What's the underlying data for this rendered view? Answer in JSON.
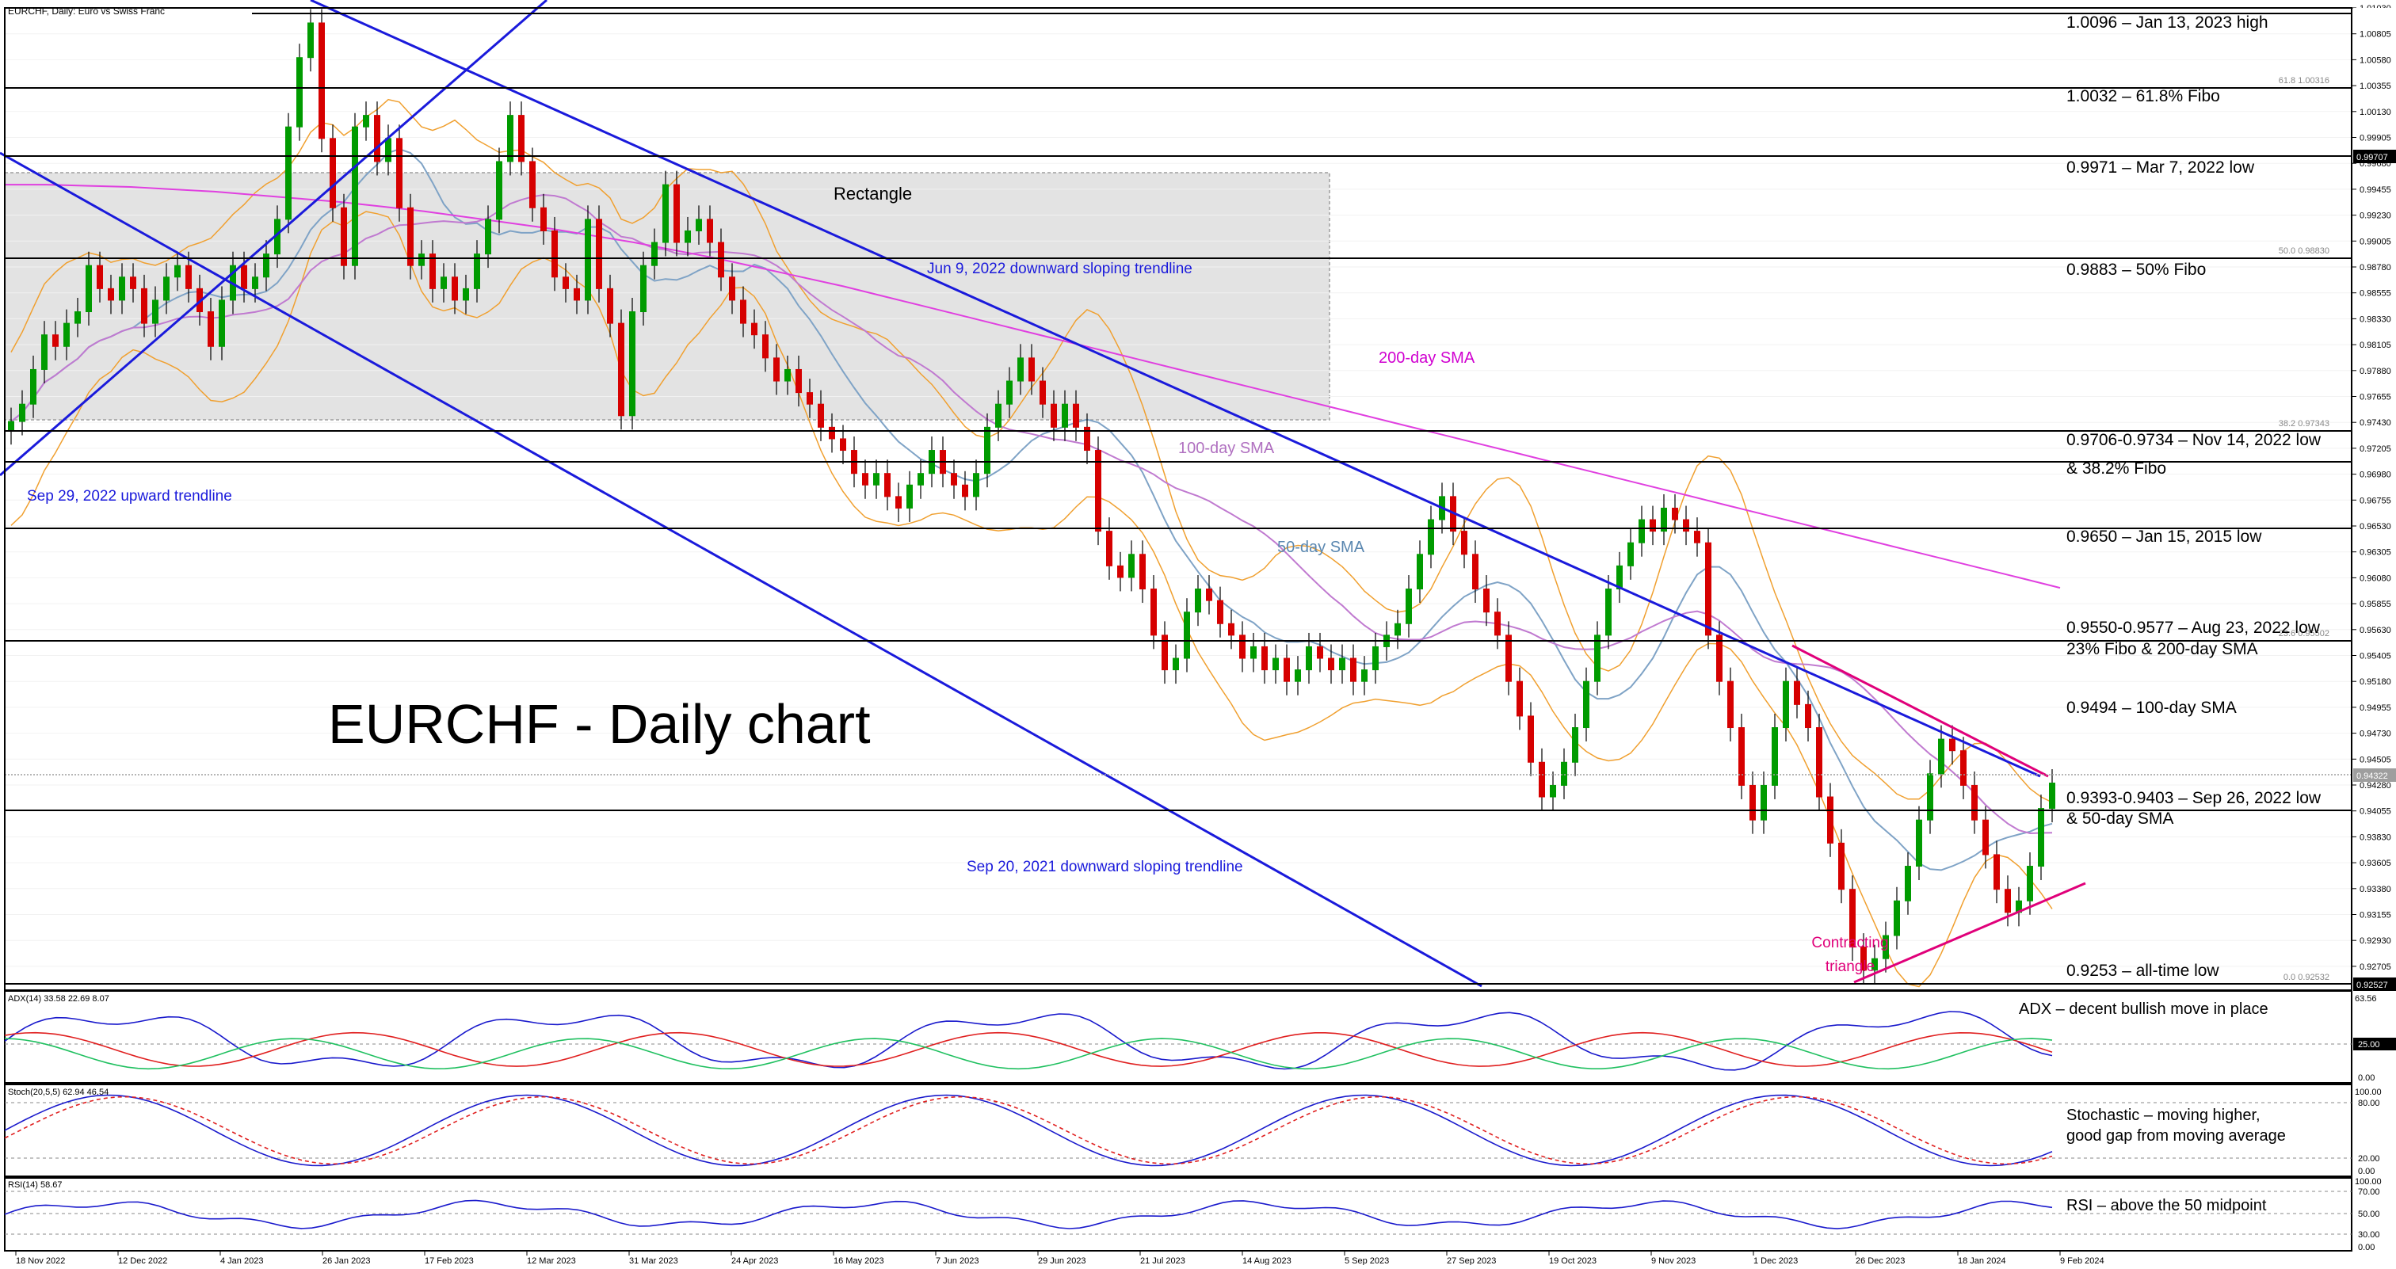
{
  "header": {
    "symbol_line": "EURCHF, Daily:  Euro vs Swiss Franc"
  },
  "chart_data": {
    "type": "candlestick",
    "title": "EURCHF - Daily chart",
    "y_range": [
      0.92527,
      1.0103
    ],
    "y_ticks": [
      "1.01030",
      "1.00805",
      "1.00580",
      "1.00355",
      "1.00130",
      "0.99905",
      "0.99680",
      "0.99455",
      "0.99230",
      "0.99005",
      "0.98780",
      "0.98555",
      "0.98330",
      "0.98105",
      "0.97880",
      "0.97655",
      "0.97430",
      "0.97205",
      "0.96980",
      "0.96755",
      "0.96530",
      "0.96305",
      "0.96080",
      "0.95855",
      "0.95630",
      "0.95405",
      "0.95180",
      "0.94955",
      "0.94730",
      "0.94505",
      "0.94280",
      "0.94055",
      "0.93830",
      "0.93605",
      "0.93380",
      "0.93155",
      "0.92930",
      "0.92705"
    ],
    "x_ticks": [
      "18 Nov 2022",
      "12 Dec 2022",
      "4 Jan 2023",
      "26 Jan 2023",
      "17 Feb 2023",
      "12 Mar 2023",
      "31 Mar 2023",
      "24 Apr 2023",
      "16 May 2023",
      "7 Jun 2023",
      "29 Jun 2023",
      "21 Jul 2023",
      "14 Aug 2023",
      "5 Sep 2023",
      "27 Sep 2023",
      "19 Oct 2023",
      "9 Nov 2023",
      "1 Dec 2023",
      "26 Dec 2023",
      "18 Jan 2024",
      "9 Feb 2024"
    ],
    "price_tags": {
      "high": "1.01030",
      "fib618": "1.00316",
      "mar7": "0.99707",
      "fib50": "0.98830",
      "fib382": "0.97343",
      "fib236": "0.95502",
      "current": "0.94322",
      "low": "0.92527"
    },
    "fib_labels": {
      "fib618": "61.8 1.00316",
      "fib50": "50.0 0.98830",
      "fib382": "38.2 0.97343",
      "fib236": "23.6 0.95502",
      "fib0": "0.0 0.92532"
    },
    "levels": [
      {
        "value": 1.0096,
        "label": "1.0096 – Jan 13, 2023 high"
      },
      {
        "value": 1.0032,
        "label": "1.0032 – 61.8% Fibo"
      },
      {
        "value": 0.9971,
        "label": "0.9971 – Mar 7, 2022 low"
      },
      {
        "value": 0.9883,
        "label": "0.9883 – 50% Fibo"
      },
      {
        "value": 0.9734,
        "label": "0.9706-0.9734 – Nov 14, 2022 low",
        "label2": "& 38.2% Fibo"
      },
      {
        "value": 0.965,
        "label": "0.9650 – Jan 15, 2015 low"
      },
      {
        "value": 0.955,
        "label": "0.9550-0.9577 – Aug 23, 2022 low",
        "label2": "23% Fibo & 200-day SMA"
      },
      {
        "value": 0.9494,
        "label": "0.9494 – 100-day SMA"
      },
      {
        "value": 0.9403,
        "label": "0.9393-0.9403 – Sep 26, 2022 low",
        "label2": "& 50-day SMA"
      },
      {
        "value": 0.9253,
        "label": "0.9253 – all-time low"
      }
    ],
    "annotations": {
      "rectangle": "Rectangle",
      "jun9": "Jun 9, 2022 downward sloping trendline",
      "sma200": "200-day SMA",
      "sma100": "100-day SMA",
      "sma50": "50-day SMA",
      "sep29": "Sep 29, 2022 upward trendline",
      "sep20": "Sep 20, 2021 downward sloping trendline",
      "triangle1": "Contracting",
      "triangle2": "triangle"
    },
    "closes": [
      0.9745,
      0.976,
      0.979,
      0.982,
      0.981,
      0.983,
      0.984,
      0.988,
      0.986,
      0.985,
      0.987,
      0.986,
      0.983,
      0.985,
      0.987,
      0.988,
      0.986,
      0.984,
      0.981,
      0.985,
      0.988,
      0.986,
      0.987,
      0.989,
      0.992,
      1.0,
      1.006,
      1.009,
      0.999,
      0.993,
      0.988,
      1.0,
      1.001,
      0.997,
      0.999,
      0.993,
      0.988,
      0.989,
      0.986,
      0.987,
      0.985,
      0.986,
      0.989,
      0.992,
      0.997,
      1.001,
      0.997,
      0.993,
      0.991,
      0.987,
      0.986,
      0.985,
      0.992,
      0.986,
      0.983,
      0.975,
      0.984,
      0.988,
      0.99,
      0.995,
      0.99,
      0.991,
      0.992,
      0.99,
      0.987,
      0.985,
      0.983,
      0.982,
      0.98,
      0.978,
      0.979,
      0.977,
      0.976,
      0.974,
      0.973,
      0.972,
      0.97,
      0.969,
      0.97,
      0.968,
      0.967,
      0.969,
      0.97,
      0.972,
      0.97,
      0.969,
      0.968,
      0.97,
      0.974,
      0.976,
      0.978,
      0.98,
      0.978,
      0.976,
      0.974,
      0.976,
      0.974,
      0.972,
      0.965,
      0.962,
      0.961,
      0.963,
      0.96,
      0.956,
      0.953,
      0.954,
      0.958,
      0.96,
      0.959,
      0.957,
      0.956,
      0.954,
      0.955,
      0.953,
      0.954,
      0.952,
      0.953,
      0.955,
      0.954,
      0.953,
      0.954,
      0.952,
      0.953,
      0.955,
      0.956,
      0.957,
      0.96,
      0.963,
      0.966,
      0.968,
      0.965,
      0.963,
      0.96,
      0.958,
      0.956,
      0.952,
      0.949,
      0.945,
      0.942,
      0.943,
      0.945,
      0.948,
      0.952,
      0.956,
      0.96,
      0.962,
      0.964,
      0.966,
      0.965,
      0.967,
      0.966,
      0.965,
      0.964,
      0.956,
      0.952,
      0.948,
      0.943,
      0.94,
      0.943,
      0.948,
      0.952,
      0.95,
      0.948,
      0.942,
      0.938,
      0.934,
      0.929,
      0.927,
      0.928,
      0.93,
      0.933,
      0.936,
      0.94,
      0.944,
      0.947,
      0.946,
      0.943,
      0.94,
      0.937,
      0.934,
      0.932,
      0.933,
      0.936,
      0.941,
      0.9432
    ],
    "sma200": [
      0.995,
      0.995,
      0.9949,
      0.9948,
      0.9946,
      0.9944,
      0.9941,
      0.9938,
      0.9935,
      0.9931,
      0.9927,
      0.9922,
      0.9917,
      0.9912,
      0.9906,
      0.99,
      0.9893,
      0.9886,
      0.9878,
      0.987,
      0.9862,
      0.9853,
      0.9844,
      0.9835,
      0.9826,
      0.9817,
      0.9808,
      0.9799,
      0.979,
      0.9781,
      0.9772,
      0.9763,
      0.9754,
      0.9745,
      0.9736,
      0.9727,
      0.9718,
      0.9709,
      0.97,
      0.9691,
      0.9682,
      0.9673,
      0.9664,
      0.9655,
      0.9646,
      0.9637,
      0.9628,
      0.9619,
      0.961,
      0.9601
    ],
    "ind_labels": {
      "adx": "ADX(14) 33.58 22.69 8.07",
      "stoch": "Stoch(20,5,5) 62.94 46.54",
      "rsi": "RSI(14) 58.67",
      "adx_top": "63.56",
      "adx_level": "25.00",
      "adx_bottom": "0.00",
      "stoch_top": "100.00",
      "stoch_80": "80.00",
      "stoch_20": "20.00",
      "stoch_bottom": "0.00",
      "rsi_top": "100.00",
      "rsi_70": "70.00",
      "rsi_50": "50.00",
      "rsi_30": "30.00",
      "rsi_bottom": "0.00"
    },
    "ind_notes": {
      "adx": "ADX – decent bullish move in place",
      "stoch1": "Stochastic – moving higher,",
      "stoch2": "good gap from moving average",
      "rsi": "RSI – above the 50 midpoint"
    }
  }
}
